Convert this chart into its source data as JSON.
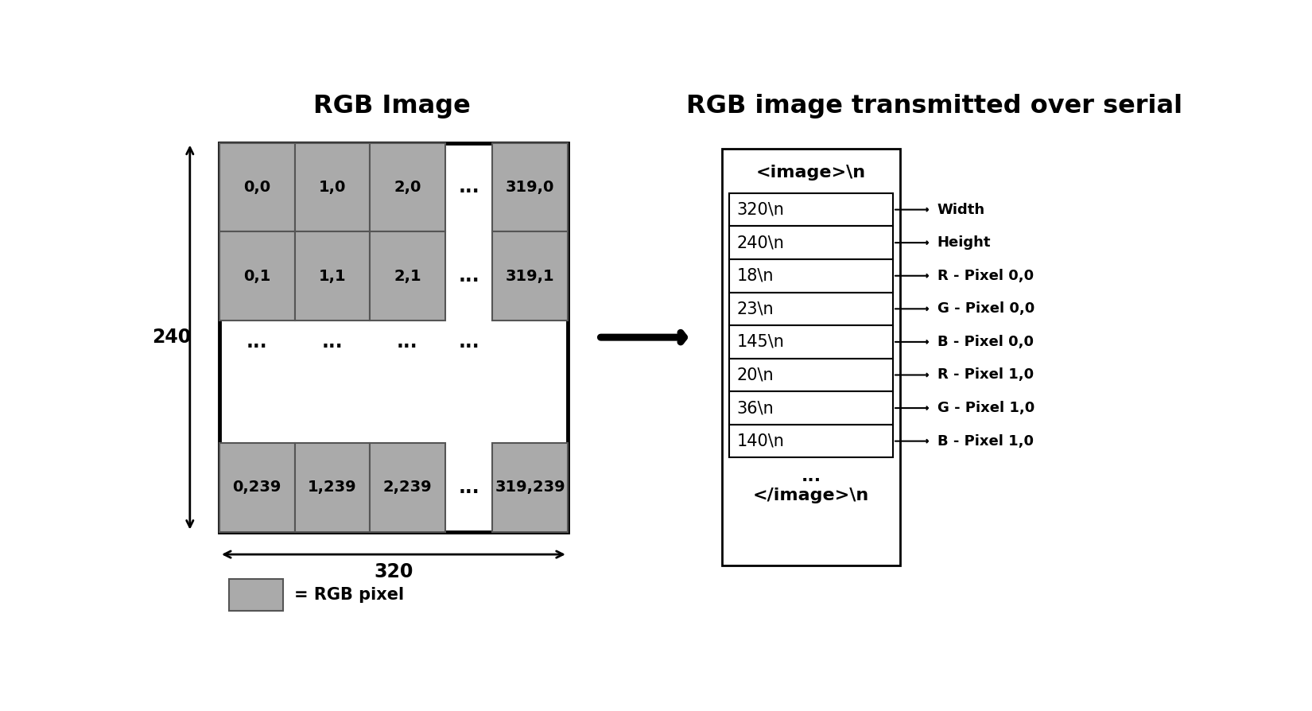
{
  "title_left": "RGB Image",
  "title_right": "RGB image transmitted over serial",
  "pixel_color": "#aaaaaa",
  "background": "#ffffff",
  "grid_labels_row0": [
    "0,0",
    "1,0",
    "2,0",
    "319,0"
  ],
  "grid_labels_row1": [
    "0,1",
    "1,1",
    "2,1",
    "319,1"
  ],
  "grid_labels_row3": [
    "0,239",
    "1,239",
    "2,239",
    "319,239"
  ],
  "serial_items": [
    "<image>\\n",
    "320\\n",
    "240\\n",
    "18\\n",
    "23\\n",
    "145\\n",
    "20\\n",
    "36\\n",
    "140\\n",
    "...",
    "</image>\\n"
  ],
  "serial_boxes": [
    "320\\n",
    "240\\n",
    "18\\n",
    "23\\n",
    "145\\n",
    "20\\n",
    "36\\n",
    "140\\n"
  ],
  "annotations": [
    "Width",
    "Height",
    "R - Pixel 0,0",
    "G - Pixel 0,0",
    "B - Pixel 0,0",
    "R - Pixel 1,0",
    "G - Pixel 1,0",
    "B - Pixel 1,0"
  ],
  "dim_240": "240",
  "dim_320": "320",
  "legend_label": "= RGB pixel"
}
